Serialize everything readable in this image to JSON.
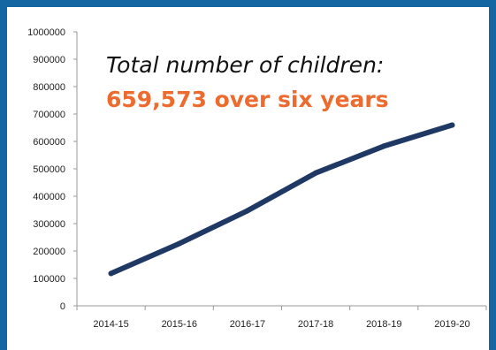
{
  "colors": {
    "frame": "#1466a3",
    "line": "#1f3864",
    "highlight": "#ed6b2e",
    "axis": "#9a9a9a"
  },
  "chart_data": {
    "type": "line",
    "title": "Total number of children:",
    "subtitle": "659,573 over six years",
    "xlabel": "",
    "ylabel": "",
    "categories": [
      "2014-15",
      "2015-16",
      "2016-17",
      "2017-18",
      "2018-19",
      "2019-20"
    ],
    "series": [
      {
        "values": [
          118000,
          227000,
          347000,
          485000,
          583000,
          659573
        ]
      }
    ],
    "ylim": [
      0,
      1000000
    ],
    "yticks": [
      "0",
      "100000",
      "200000",
      "300000",
      "400000",
      "500000",
      "600000",
      "700000",
      "800000",
      "900000",
      "1000000"
    ],
    "grid": false,
    "legend": "none"
  }
}
